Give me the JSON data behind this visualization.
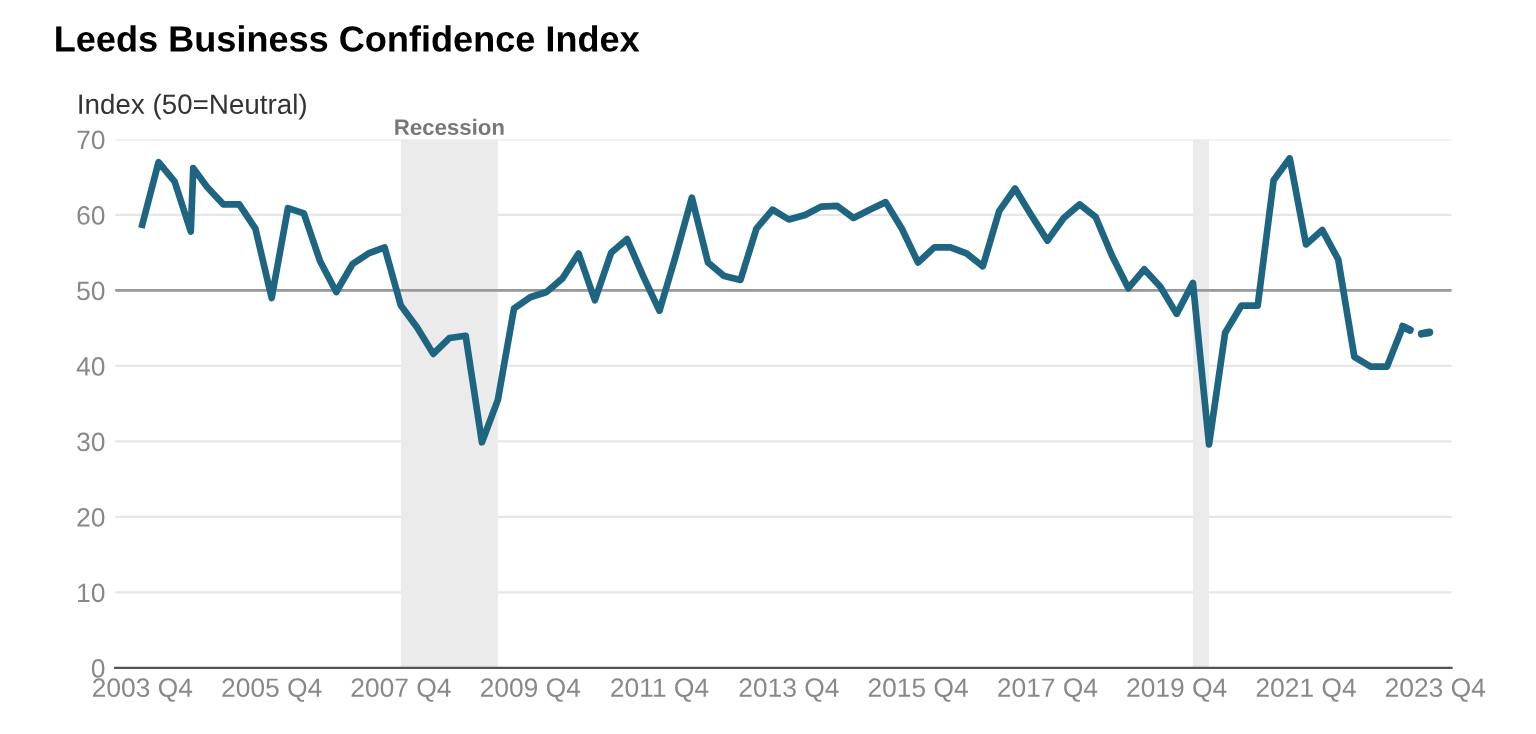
{
  "chart_data": {
    "type": "line",
    "title": "Leeds Business Confidence Index",
    "ylabel": "Index (50=Neutral)",
    "series": [
      {
        "color": "#1d6580",
        "line_style": "solid",
        "x": [
          "2003-10",
          "2004-01",
          "2004-04",
          "2004-07",
          "2004-07-15",
          "2004-10",
          "2005-01",
          "2005-04",
          "2005-07",
          "2005-10",
          "2006-01",
          "2006-04",
          "2006-07",
          "2006-10",
          "2007-01",
          "2007-04",
          "2007-07",
          "2007-10",
          "2008-01",
          "2008-04",
          "2008-07",
          "2008-10",
          "2009-01",
          "2009-04",
          "2009-07",
          "2009-10",
          "2010-01",
          "2010-04",
          "2010-07",
          "2010-10",
          "2011-01",
          "2011-04",
          "2011-07",
          "2011-10",
          "2012-01",
          "2012-04",
          "2012-07",
          "2012-10",
          "2013-01",
          "2013-04",
          "2013-07",
          "2013-10",
          "2014-01",
          "2014-04",
          "2014-07",
          "2014-10",
          "2015-01",
          "2015-04",
          "2015-07",
          "2015-10",
          "2016-01",
          "2016-04",
          "2016-07",
          "2016-10",
          "2017-01",
          "2017-04",
          "2017-07",
          "2017-10",
          "2018-01",
          "2018-04",
          "2018-07",
          "2018-10",
          "2019-01",
          "2019-04",
          "2019-07",
          "2019-10",
          "2020-01",
          "2020-04",
          "2020-07",
          "2020-10",
          "2021-01",
          "2021-04",
          "2021-07",
          "2021-10",
          "2022-01",
          "2022-04",
          "2022-07",
          "2022-10",
          "2023-01",
          "2023-04"
        ],
        "values": [
          58.7,
          67.0,
          64.4,
          57.8,
          66.2,
          63.7,
          61.4,
          61.4,
          58.2,
          49.0,
          60.9,
          60.2,
          53.9,
          49.8,
          53.5,
          54.9,
          55.7,
          48.0,
          45.1,
          41.6,
          43.7,
          44.0,
          29.9,
          35.5,
          47.6,
          49.1,
          49.8,
          51.6,
          54.9,
          48.7,
          55.0,
          56.8,
          51.9,
          47.3,
          54.6,
          62.3,
          53.7,
          51.9,
          51.4,
          58.2,
          60.7,
          59.4,
          60.0,
          61.1,
          61.2,
          59.6,
          60.7,
          61.7,
          58.2,
          53.7,
          55.7,
          55.7,
          54.9,
          53.2,
          60.5,
          63.5,
          60.0,
          56.6,
          59.6,
          61.4,
          59.7,
          54.6,
          50.3,
          52.8,
          50.5,
          46.9,
          51.0,
          29.6,
          44.4,
          48.0,
          48.0,
          64.6,
          67.5,
          56.1,
          58.0,
          54.1,
          41.2,
          39.9,
          39.9,
          45.2
        ]
      },
      {
        "color": "#1d6580",
        "line_style": "dotted",
        "x": [
          "2023-04",
          "2023-07",
          "2023-10"
        ],
        "values": [
          45.2,
          44.2,
          44.6
        ]
      }
    ],
    "xlim": [
      "2003-05",
      "2024-01"
    ],
    "xticks": [
      {
        "value": "2003-10",
        "label": "2003 Q4"
      },
      {
        "value": "2005-10",
        "label": "2005 Q4"
      },
      {
        "value": "2007-10",
        "label": "2007 Q4"
      },
      {
        "value": "2009-10",
        "label": "2009 Q4"
      },
      {
        "value": "2011-10",
        "label": "2011 Q4"
      },
      {
        "value": "2013-10",
        "label": "2013 Q4"
      },
      {
        "value": "2015-10",
        "label": "2015 Q4"
      },
      {
        "value": "2017-10",
        "label": "2017 Q4"
      },
      {
        "value": "2019-10",
        "label": "2019 Q4"
      },
      {
        "value": "2021-10",
        "label": "2021 Q4"
      },
      {
        "value": "2023-10",
        "label": "2023 Q4"
      }
    ],
    "ylim": [
      0,
      70
    ],
    "yticks": [
      0,
      10,
      20,
      30,
      40,
      50,
      60,
      70
    ],
    "grid": "y",
    "ref_lines": [
      {
        "axis": "y",
        "value": 50,
        "color": "#999999"
      }
    ],
    "bands": [
      {
        "axis": "x",
        "from": "2007-10",
        "to": "2009-04",
        "label": "Recession",
        "color": "#ebebeb"
      },
      {
        "axis": "x",
        "from": "2020-01",
        "to": "2020-04",
        "color": "#ebebeb"
      }
    ]
  }
}
